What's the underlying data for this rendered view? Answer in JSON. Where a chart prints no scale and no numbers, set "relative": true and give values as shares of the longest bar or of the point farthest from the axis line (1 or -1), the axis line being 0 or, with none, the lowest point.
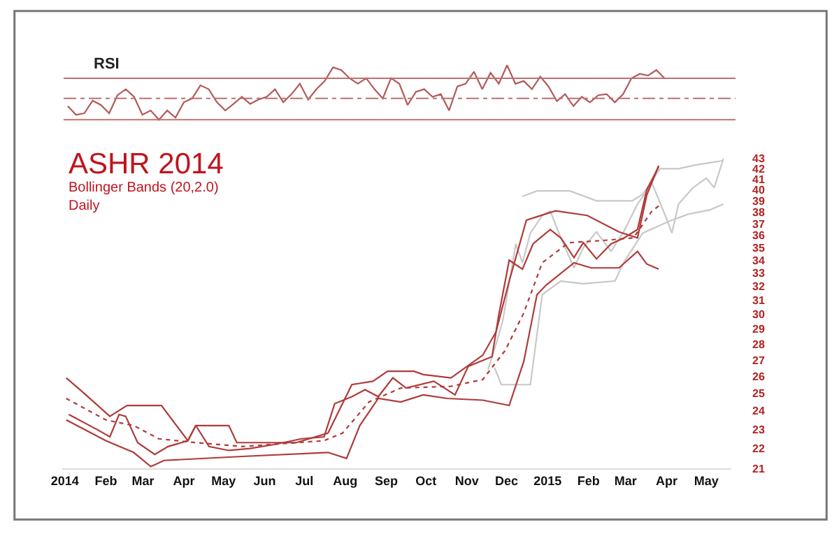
{
  "chart_data": [
    {
      "type": "line",
      "title": "RSI",
      "relative": true,
      "categories": [
        null,
        null,
        null,
        null,
        null,
        null,
        null,
        null,
        null,
        null,
        null,
        null,
        null,
        null,
        null,
        null,
        null,
        null,
        null,
        null,
        null,
        null,
        null,
        null,
        null,
        null,
        null,
        null,
        null,
        null,
        null,
        null,
        null,
        null,
        null,
        null,
        null,
        null,
        null,
        null,
        null,
        null,
        null,
        null,
        null,
        null,
        null,
        null,
        null,
        null,
        null,
        null,
        null,
        null,
        null,
        null,
        null,
        null,
        null,
        null,
        null,
        null,
        null,
        null,
        null,
        null,
        null,
        null,
        null,
        null,
        null,
        null,
        null
      ],
      "series": [
        {
          "color": "#b35a5a",
          "values": [
            0.25,
            0.09,
            0.12,
            0.35,
            0.27,
            0.12,
            0.45,
            0.56,
            0.42,
            0.09,
            0.17,
            0.0,
            0.17,
            0.04,
            0.32,
            0.39,
            0.63,
            0.56,
            0.32,
            0.17,
            0.29,
            0.42,
            0.29,
            0.37,
            0.42,
            0.56,
            0.32,
            0.47,
            0.66,
            0.37,
            0.56,
            0.71,
            0.96,
            0.91,
            0.76,
            0.66,
            0.76,
            0.56,
            0.39,
            0.76,
            0.66,
            0.27,
            0.51,
            0.56,
            0.42,
            0.47,
            0.17,
            0.61,
            0.66,
            0.88,
            0.56,
            0.86,
            0.66,
            1.0,
            0.66,
            0.71,
            0.56,
            0.79,
            0.61,
            0.34,
            0.47,
            0.25,
            0.42,
            0.32,
            0.45,
            0.47,
            0.32,
            0.47,
            0.76,
            0.84,
            0.81,
            0.91,
            0.76
          ]
        }
      ],
      "ref_lines": [
        {
          "axis": "y",
          "value": 0.76,
          "color": "#c07070",
          "line_style": "solid"
        },
        {
          "axis": "y",
          "value": 0.39,
          "color": "#c07070",
          "line_style": "dashed"
        },
        {
          "axis": "y",
          "value": 0.0,
          "color": "#c07070",
          "line_style": "solid"
        }
      ]
    },
    {
      "type": "line",
      "title": "ASHR 2014",
      "subtitle": "Bollinger Bands (20,2.0)\nDaily",
      "log": true,
      "ylim": [
        21,
        43
      ],
      "xlim": [
        "2013-12-30",
        "2015-05-20"
      ],
      "yticks": [
        21,
        22,
        23,
        24,
        25,
        26,
        27,
        28,
        29,
        30,
        31,
        32,
        33,
        34,
        35,
        36,
        37,
        38,
        39,
        40,
        41,
        42,
        43
      ],
      "xticks": [
        {
          "value": "2014-01-01",
          "label": "2014"
        },
        {
          "value": "2014-02-01",
          "label": "Feb"
        },
        {
          "value": "2014-03-01",
          "label": "Mar"
        },
        {
          "value": "2014-04-01",
          "label": "Apr"
        },
        {
          "value": "2014-05-01",
          "label": "May"
        },
        {
          "value": "2014-06-01",
          "label": "Jun"
        },
        {
          "value": "2014-07-01",
          "label": "Jul"
        },
        {
          "value": "2014-08-01",
          "label": "Aug"
        },
        {
          "value": "2014-09-01",
          "label": "Sep"
        },
        {
          "value": "2014-10-01",
          "label": "Oct"
        },
        {
          "value": "2014-11-01",
          "label": "Nov"
        },
        {
          "value": "2014-12-01",
          "label": "Dec"
        },
        {
          "value": "2015-01-01",
          "label": "2015"
        },
        {
          "value": "2015-02-01",
          "label": "Feb"
        },
        {
          "value": "2015-03-01",
          "label": "Mar"
        },
        {
          "value": "2015-04-01",
          "label": "Apr"
        },
        {
          "value": "2015-05-01",
          "label": "May"
        }
      ],
      "series": [
        {
          "color": "#c8c8c8",
          "line_style": "solid",
          "x": [
            "2014-11-17",
            "2014-11-23",
            "2014-11-28",
            "2014-12-08",
            "2014-12-13",
            "2014-12-19",
            "2014-12-28",
            "2015-01-03",
            "2015-01-11",
            "2015-01-21",
            "2015-01-28",
            "2015-02-07",
            "2015-02-18",
            "2015-02-28",
            "2015-03-10",
            "2015-03-21",
            "2015-03-31",
            "2015-04-05",
            "2015-04-10",
            "2015-04-21",
            "2015-05-01",
            "2015-05-07",
            "2015-05-14"
          ],
          "values": [
            26.4,
            28.0,
            29.5,
            35.3,
            33.8,
            36.2,
            37.7,
            38.1,
            35.8,
            33.4,
            35.0,
            36.3,
            34.7,
            36.4,
            38.7,
            40.6,
            37.7,
            36.2,
            38.7,
            40.2,
            41.1,
            40.2,
            43.0
          ]
        },
        {
          "color": "#c8c8c8",
          "line_style": "solid",
          "x": [
            "2014-12-13",
            "2014-12-24",
            "2015-01-18",
            "2015-02-07",
            "2015-03-06",
            "2015-03-14",
            "2015-03-27",
            "2015-04-10",
            "2015-04-24",
            "2015-05-14"
          ],
          "values": [
            39.4,
            39.9,
            39.9,
            39.0,
            39.0,
            39.6,
            42.0,
            42.0,
            42.4,
            42.8
          ]
        },
        {
          "color": "#c8c8c8",
          "line_style": "solid",
          "x": [
            "2014-11-22",
            "2014-11-27",
            "2014-12-19",
            "2014-12-28",
            "2015-01-11",
            "2015-01-28",
            "2015-02-21",
            "2015-02-28",
            "2015-03-14",
            "2015-04-03",
            "2015-04-17",
            "2015-05-04",
            "2015-05-14"
          ],
          "values": [
            26.5,
            25.5,
            25.5,
            31.4,
            32.4,
            32.2,
            32.4,
            33.9,
            36.2,
            37.2,
            37.8,
            38.2,
            38.7
          ]
        },
        {
          "color": "#b03a3a",
          "line_style": "solid",
          "x": [
            "2014-01-04",
            "2014-01-25",
            "2014-02-04",
            "2014-02-11",
            "2014-02-16",
            "2014-02-25",
            "2014-03-10",
            "2014-03-20",
            "2014-04-04",
            "2014-04-10",
            "2014-04-20",
            "2014-05-05",
            "2014-05-21",
            "2014-06-08",
            "2014-06-29",
            "2014-07-16",
            "2014-07-24",
            "2014-08-06",
            "2014-08-16",
            "2014-08-26",
            "2014-09-06",
            "2014-09-16",
            "2014-10-07",
            "2014-10-23",
            "2014-11-02",
            "2014-11-20",
            "2014-11-25",
            "2014-12-03",
            "2014-12-13",
            "2014-12-21",
            "2015-01-03",
            "2015-01-11",
            "2015-01-21",
            "2015-01-28",
            "2015-02-07",
            "2015-02-18",
            "2015-02-28",
            "2015-03-10",
            "2015-03-17",
            "2015-03-26"
          ],
          "values": [
            23.8,
            23.0,
            22.6,
            23.8,
            23.7,
            22.3,
            21.7,
            22.1,
            22.4,
            23.2,
            22.1,
            21.9,
            22.0,
            22.2,
            22.5,
            22.6,
            24.4,
            24.8,
            25.2,
            24.8,
            25.9,
            25.3,
            25.7,
            24.9,
            26.6,
            27.2,
            29.9,
            34.0,
            33.3,
            35.3,
            36.5,
            35.8,
            34.2,
            35.4,
            34.1,
            35.3,
            35.8,
            36.5,
            40.0,
            42.2
          ]
        },
        {
          "color": "#b03a3a",
          "line_style": "solid",
          "x": [
            "2014-01-02",
            "2014-01-14",
            "2014-02-04",
            "2014-02-17",
            "2014-03-15",
            "2014-04-04",
            "2014-04-10",
            "2014-05-05",
            "2014-05-11",
            "2014-06-25",
            "2014-07-19",
            "2014-08-06",
            "2014-08-22",
            "2014-09-02",
            "2014-09-22",
            "2014-09-29",
            "2014-10-20",
            "2014-11-13",
            "2014-11-23",
            "2014-12-03",
            "2014-12-16",
            "2015-01-07",
            "2015-01-31",
            "2015-02-24",
            "2015-03-10",
            "2015-03-17",
            "2015-03-26"
          ],
          "values": [
            25.9,
            25.1,
            23.7,
            24.3,
            24.3,
            22.4,
            23.2,
            23.2,
            22.3,
            22.3,
            22.8,
            25.5,
            25.7,
            26.3,
            26.3,
            26.1,
            25.9,
            27.3,
            28.8,
            32.4,
            37.3,
            38.1,
            37.7,
            36.3,
            35.8,
            39.5,
            42.3
          ]
        },
        {
          "color": "#b03a3a",
          "line_style": "dotted",
          "x": [
            "2014-01-02",
            "2014-02-01",
            "2014-02-22",
            "2014-03-13",
            "2014-04-10",
            "2014-05-15",
            "2014-07-16",
            "2014-07-30",
            "2014-08-19",
            "2014-09-12",
            "2014-10-20",
            "2014-11-13",
            "2014-11-30",
            "2014-12-14",
            "2014-12-28",
            "2015-01-17",
            "2015-02-14",
            "2015-03-07",
            "2015-03-21",
            "2015-03-28"
          ],
          "values": [
            24.7,
            23.5,
            23.2,
            22.5,
            22.3,
            22.1,
            22.4,
            22.8,
            24.5,
            25.3,
            25.4,
            25.8,
            27.6,
            30.1,
            33.8,
            35.4,
            35.6,
            35.8,
            38.1,
            38.7
          ]
        },
        {
          "color": "#b03a3a",
          "line_style": "solid",
          "x": [
            "2014-01-02",
            "2014-02-01",
            "2014-02-22",
            "2014-03-07",
            "2014-03-17",
            "2014-05-15",
            "2014-07-19",
            "2014-08-02",
            "2014-08-12",
            "2014-08-26",
            "2014-09-12",
            "2014-09-29",
            "2014-10-17",
            "2014-11-13",
            "2014-12-03",
            "2014-12-14",
            "2014-12-24",
            "2014-12-31",
            "2015-01-21",
            "2015-02-03",
            "2015-02-24",
            "2015-03-10",
            "2015-03-17",
            "2015-03-26"
          ],
          "values": [
            23.5,
            22.4,
            21.8,
            21.1,
            21.4,
            21.6,
            21.8,
            21.5,
            23.2,
            24.7,
            24.5,
            24.9,
            24.7,
            24.6,
            24.3,
            26.9,
            31.4,
            32.1,
            33.8,
            33.4,
            33.4,
            34.7,
            33.7,
            33.3
          ]
        }
      ]
    }
  ]
}
